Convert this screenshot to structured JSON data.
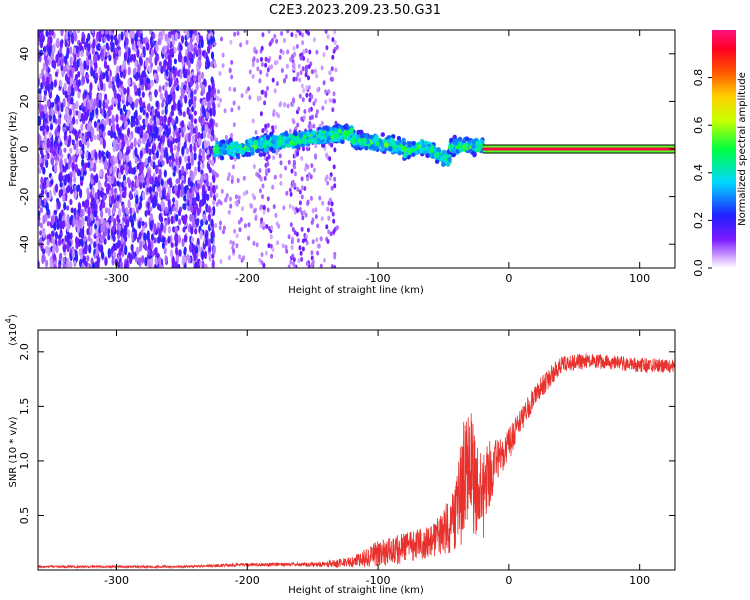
{
  "title": "C2E3.2023.209.23.50.G31",
  "colors": {
    "snr_line": "#e8302c",
    "background": "#ffffff",
    "axis": "#000000"
  },
  "chart_data": [
    {
      "type": "heatmap",
      "xlabel": "Height of straight line (km)",
      "ylabel": "Frequency (Hz)",
      "xlim": [
        -360,
        127
      ],
      "ylim": [
        -50,
        50
      ],
      "x_ticks": [
        -300,
        -200,
        -100,
        0,
        100
      ],
      "x_tick_labels": [
        "-300",
        "-200",
        "-100",
        "0",
        "100"
      ],
      "y_ticks": [
        -40,
        -20,
        0,
        20,
        40
      ],
      "y_tick_labels": [
        "-40",
        "-20",
        "0",
        "20",
        "40"
      ],
      "colorbar": {
        "label": "Normalized spectral amplitude",
        "range": [
          0,
          1
        ],
        "ticks": [
          0,
          0.2,
          0.4,
          0.6,
          0.8
        ],
        "tick_labels": [
          "0.0",
          "0.2",
          "0.4",
          "0.6",
          "0.8"
        ],
        "colormap": "rainbow: white-violet-blue-cyan-green-yellow-orange-red-magenta"
      },
      "features": {
        "noise_region_x": [
          -360,
          -225
        ],
        "scattered_noise_x": [
          -225,
          -130
        ],
        "signal_track_x": [
          -225,
          -20
        ],
        "signal_frequency_hz": [
          0,
          8
        ],
        "clean_line_x": [
          -20,
          127
        ],
        "clean_line_frequency_hz": 0,
        "clean_line_amplitude": 1.0
      }
    },
    {
      "type": "line",
      "xlabel": "Height of straight line (km)",
      "ylabel": "SNR (10 * v/v)",
      "y_multiplier_label": "(x10",
      "y_multiplier_exponent": "4",
      "y_multiplier_suffix": ")",
      "xlim": [
        -360,
        127
      ],
      "ylim": [
        0,
        2.2
      ],
      "x_ticks": [
        -300,
        -200,
        -100,
        0,
        100
      ],
      "x_tick_labels": [
        "-300",
        "-200",
        "-100",
        "0",
        "100"
      ],
      "y_ticks": [
        0.5,
        1.0,
        1.5,
        2.0
      ],
      "y_tick_labels": [
        "0.5",
        "1.0",
        "1.5",
        "2.0"
      ],
      "series": [
        {
          "envelope_x": [
            -360,
            -250,
            -200,
            -150,
            -120,
            -100,
            -80,
            -60,
            -50,
            -40,
            -35,
            -30,
            -25,
            -20,
            -15,
            -10,
            0,
            10,
            20,
            30,
            40,
            60,
            80,
            100,
            127
          ],
          "envelope_y_mean": [
            0.03,
            0.03,
            0.05,
            0.05,
            0.07,
            0.15,
            0.2,
            0.25,
            0.35,
            0.5,
            0.8,
            1.0,
            0.7,
            0.65,
            0.85,
            1.0,
            1.15,
            1.4,
            1.6,
            1.75,
            1.88,
            1.92,
            1.9,
            1.88,
            1.87
          ],
          "envelope_y_noise": [
            0.01,
            0.01,
            0.015,
            0.02,
            0.05,
            0.12,
            0.15,
            0.15,
            0.2,
            0.35,
            0.55,
            0.55,
            0.45,
            0.4,
            0.35,
            0.2,
            0.15,
            0.12,
            0.1,
            0.1,
            0.08,
            0.07,
            0.07,
            0.07,
            0.06
          ]
        }
      ]
    }
  ]
}
